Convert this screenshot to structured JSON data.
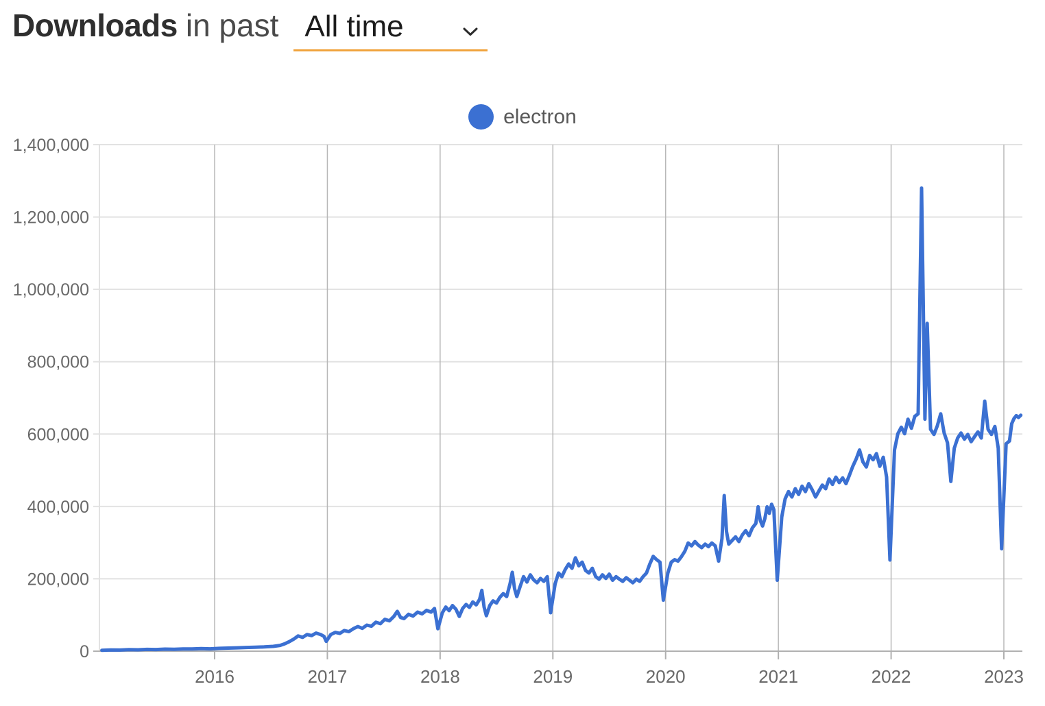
{
  "header": {
    "title_bold": "Downloads",
    "title_rest": "in past",
    "select_value": "All time"
  },
  "legend": {
    "label": "electron",
    "color": "#3b70d2"
  },
  "chart_data": {
    "type": "line",
    "title": "Downloads in past All time",
    "xlabel": "",
    "ylabel": "",
    "ylim": [
      0,
      1400000
    ],
    "xlim": [
      2015.0,
      2023.17
    ],
    "grid": true,
    "legend_position": "top-center",
    "colors": {
      "line": "#3b70d2",
      "h_grid": "#e2e2e2",
      "v_grid": "#b8b8b8",
      "axis": "#b0b0b0",
      "tick_label": "#696969"
    },
    "yticks": {
      "values": [
        0,
        200000,
        400000,
        600000,
        800000,
        1000000,
        1200000,
        1400000
      ],
      "labels": [
        "0",
        "200,000",
        "400,000",
        "600,000",
        "800,000",
        "1,000,000",
        "1,200,000",
        "1,400,000"
      ]
    },
    "xticks": {
      "values": [
        2016,
        2017,
        2018,
        2019,
        2020,
        2021,
        2022,
        2023
      ],
      "labels": [
        "2016",
        "2017",
        "2018",
        "2019",
        "2020",
        "2021",
        "2022",
        "2023"
      ]
    },
    "series": [
      {
        "name": "electron",
        "color": "#3b70d2",
        "points": [
          [
            2015.0,
            2500
          ],
          [
            2015.08,
            3500
          ],
          [
            2015.16,
            3000
          ],
          [
            2015.24,
            4200
          ],
          [
            2015.32,
            3800
          ],
          [
            2015.4,
            5000
          ],
          [
            2015.48,
            4600
          ],
          [
            2015.56,
            5600
          ],
          [
            2015.64,
            5200
          ],
          [
            2015.72,
            6200
          ],
          [
            2015.8,
            6000
          ],
          [
            2015.88,
            7000
          ],
          [
            2015.96,
            6400
          ],
          [
            2016.04,
            7800
          ],
          [
            2016.12,
            8600
          ],
          [
            2016.2,
            9200
          ],
          [
            2016.28,
            10200
          ],
          [
            2016.36,
            10800
          ],
          [
            2016.44,
            11800
          ],
          [
            2016.52,
            13200
          ],
          [
            2016.58,
            16000
          ],
          [
            2016.62,
            20000
          ],
          [
            2016.66,
            26000
          ],
          [
            2016.7,
            33000
          ],
          [
            2016.74,
            42000
          ],
          [
            2016.78,
            38000
          ],
          [
            2016.82,
            46000
          ],
          [
            2016.86,
            43000
          ],
          [
            2016.9,
            50000
          ],
          [
            2016.94,
            46000
          ],
          [
            2016.97,
            41000
          ],
          [
            2016.99,
            27000
          ],
          [
            2017.03,
            46000
          ],
          [
            2017.07,
            52000
          ],
          [
            2017.11,
            49000
          ],
          [
            2017.15,
            57000
          ],
          [
            2017.19,
            54000
          ],
          [
            2017.23,
            62000
          ],
          [
            2017.27,
            68000
          ],
          [
            2017.31,
            63000
          ],
          [
            2017.35,
            72000
          ],
          [
            2017.39,
            69000
          ],
          [
            2017.43,
            80000
          ],
          [
            2017.47,
            76000
          ],
          [
            2017.51,
            88000
          ],
          [
            2017.55,
            84000
          ],
          [
            2017.59,
            96000
          ],
          [
            2017.62,
            110000
          ],
          [
            2017.65,
            93000
          ],
          [
            2017.68,
            90000
          ],
          [
            2017.72,
            102000
          ],
          [
            2017.76,
            97000
          ],
          [
            2017.8,
            108000
          ],
          [
            2017.84,
            103000
          ],
          [
            2017.88,
            113000
          ],
          [
            2017.92,
            108000
          ],
          [
            2017.95,
            118000
          ],
          [
            2017.98,
            62000
          ],
          [
            2018.02,
            106000
          ],
          [
            2018.05,
            122000
          ],
          [
            2018.08,
            112000
          ],
          [
            2018.11,
            126000
          ],
          [
            2018.14,
            116000
          ],
          [
            2018.17,
            96000
          ],
          [
            2018.2,
            118000
          ],
          [
            2018.23,
            129000
          ],
          [
            2018.26,
            121000
          ],
          [
            2018.29,
            136000
          ],
          [
            2018.32,
            128000
          ],
          [
            2018.35,
            143000
          ],
          [
            2018.37,
            168000
          ],
          [
            2018.39,
            122000
          ],
          [
            2018.41,
            98000
          ],
          [
            2018.44,
            126000
          ],
          [
            2018.47,
            139000
          ],
          [
            2018.5,
            133000
          ],
          [
            2018.53,
            149000
          ],
          [
            2018.56,
            159000
          ],
          [
            2018.59,
            151000
          ],
          [
            2018.62,
            186000
          ],
          [
            2018.64,
            218000
          ],
          [
            2018.66,
            173000
          ],
          [
            2018.68,
            151000
          ],
          [
            2018.71,
            179000
          ],
          [
            2018.74,
            206000
          ],
          [
            2018.77,
            191000
          ],
          [
            2018.8,
            211000
          ],
          [
            2018.83,
            197000
          ],
          [
            2018.86,
            189000
          ],
          [
            2018.89,
            201000
          ],
          [
            2018.92,
            193000
          ],
          [
            2018.95,
            206000
          ],
          [
            2018.98,
            106000
          ],
          [
            2019.02,
            186000
          ],
          [
            2019.05,
            216000
          ],
          [
            2019.08,
            206000
          ],
          [
            2019.11,
            226000
          ],
          [
            2019.14,
            241000
          ],
          [
            2019.17,
            229000
          ],
          [
            2019.2,
            258000
          ],
          [
            2019.23,
            236000
          ],
          [
            2019.26,
            246000
          ],
          [
            2019.29,
            223000
          ],
          [
            2019.32,
            216000
          ],
          [
            2019.35,
            229000
          ],
          [
            2019.38,
            206000
          ],
          [
            2019.41,
            199000
          ],
          [
            2019.44,
            211000
          ],
          [
            2019.47,
            201000
          ],
          [
            2019.5,
            213000
          ],
          [
            2019.53,
            196000
          ],
          [
            2019.56,
            206000
          ],
          [
            2019.59,
            199000
          ],
          [
            2019.62,
            193000
          ],
          [
            2019.65,
            203000
          ],
          [
            2019.68,
            196000
          ],
          [
            2019.71,
            189000
          ],
          [
            2019.74,
            199000
          ],
          [
            2019.77,
            193000
          ],
          [
            2019.8,
            206000
          ],
          [
            2019.83,
            216000
          ],
          [
            2019.86,
            241000
          ],
          [
            2019.89,
            262000
          ],
          [
            2019.92,
            253000
          ],
          [
            2019.95,
            246000
          ],
          [
            2019.98,
            141000
          ],
          [
            2020.02,
            216000
          ],
          [
            2020.05,
            246000
          ],
          [
            2020.08,
            253000
          ],
          [
            2020.11,
            249000
          ],
          [
            2020.14,
            261000
          ],
          [
            2020.17,
            276000
          ],
          [
            2020.2,
            299000
          ],
          [
            2020.23,
            291000
          ],
          [
            2020.26,
            303000
          ],
          [
            2020.29,
            293000
          ],
          [
            2020.32,
            286000
          ],
          [
            2020.35,
            296000
          ],
          [
            2020.38,
            289000
          ],
          [
            2020.41,
            299000
          ],
          [
            2020.44,
            291000
          ],
          [
            2020.47,
            249000
          ],
          [
            2020.5,
            311000
          ],
          [
            2020.52,
            430000
          ],
          [
            2020.54,
            331000
          ],
          [
            2020.56,
            296000
          ],
          [
            2020.59,
            306000
          ],
          [
            2020.62,
            316000
          ],
          [
            2020.65,
            303000
          ],
          [
            2020.68,
            321000
          ],
          [
            2020.71,
            333000
          ],
          [
            2020.74,
            319000
          ],
          [
            2020.77,
            341000
          ],
          [
            2020.8,
            353000
          ],
          [
            2020.82,
            399000
          ],
          [
            2020.84,
            361000
          ],
          [
            2020.86,
            346000
          ],
          [
            2020.88,
            366000
          ],
          [
            2020.9,
            399000
          ],
          [
            2020.92,
            381000
          ],
          [
            2020.94,
            406000
          ],
          [
            2020.96,
            391000
          ],
          [
            2020.99,
            196000
          ],
          [
            2021.03,
            371000
          ],
          [
            2021.06,
            421000
          ],
          [
            2021.09,
            441000
          ],
          [
            2021.12,
            426000
          ],
          [
            2021.15,
            449000
          ],
          [
            2021.18,
            433000
          ],
          [
            2021.21,
            456000
          ],
          [
            2021.24,
            441000
          ],
          [
            2021.27,
            463000
          ],
          [
            2021.3,
            446000
          ],
          [
            2021.33,
            426000
          ],
          [
            2021.36,
            443000
          ],
          [
            2021.39,
            459000
          ],
          [
            2021.42,
            449000
          ],
          [
            2021.45,
            476000
          ],
          [
            2021.48,
            461000
          ],
          [
            2021.51,
            481000
          ],
          [
            2021.54,
            466000
          ],
          [
            2021.57,
            479000
          ],
          [
            2021.6,
            463000
          ],
          [
            2021.63,
            486000
          ],
          [
            2021.66,
            511000
          ],
          [
            2021.69,
            531000
          ],
          [
            2021.72,
            556000
          ],
          [
            2021.75,
            523000
          ],
          [
            2021.78,
            509000
          ],
          [
            2021.81,
            541000
          ],
          [
            2021.84,
            529000
          ],
          [
            2021.87,
            546000
          ],
          [
            2021.9,
            511000
          ],
          [
            2021.93,
            536000
          ],
          [
            2021.96,
            481000
          ],
          [
            2021.99,
            252000
          ],
          [
            2022.03,
            556000
          ],
          [
            2022.06,
            601000
          ],
          [
            2022.09,
            619000
          ],
          [
            2022.12,
            601000
          ],
          [
            2022.15,
            641000
          ],
          [
            2022.18,
            616000
          ],
          [
            2022.21,
            649000
          ],
          [
            2022.24,
            656000
          ],
          [
            2022.27,
            1280000
          ],
          [
            2022.3,
            641000
          ],
          [
            2022.32,
            906000
          ],
          [
            2022.35,
            613000
          ],
          [
            2022.38,
            599000
          ],
          [
            2022.41,
            623000
          ],
          [
            2022.44,
            656000
          ],
          [
            2022.47,
            603000
          ],
          [
            2022.5,
            576000
          ],
          [
            2022.53,
            469000
          ],
          [
            2022.56,
            561000
          ],
          [
            2022.59,
            589000
          ],
          [
            2022.62,
            603000
          ],
          [
            2022.65,
            586000
          ],
          [
            2022.68,
            599000
          ],
          [
            2022.71,
            579000
          ],
          [
            2022.74,
            593000
          ],
          [
            2022.77,
            606000
          ],
          [
            2022.8,
            589000
          ],
          [
            2022.83,
            691000
          ],
          [
            2022.86,
            613000
          ],
          [
            2022.89,
            599000
          ],
          [
            2022.92,
            621000
          ],
          [
            2022.95,
            561000
          ],
          [
            2022.98,
            283000
          ],
          [
            2023.02,
            573000
          ],
          [
            2023.05,
            581000
          ],
          [
            2023.07,
            629000
          ],
          [
            2023.09,
            643000
          ],
          [
            2023.11,
            651000
          ],
          [
            2023.13,
            646000
          ],
          [
            2023.15,
            652000
          ]
        ]
      }
    ]
  }
}
